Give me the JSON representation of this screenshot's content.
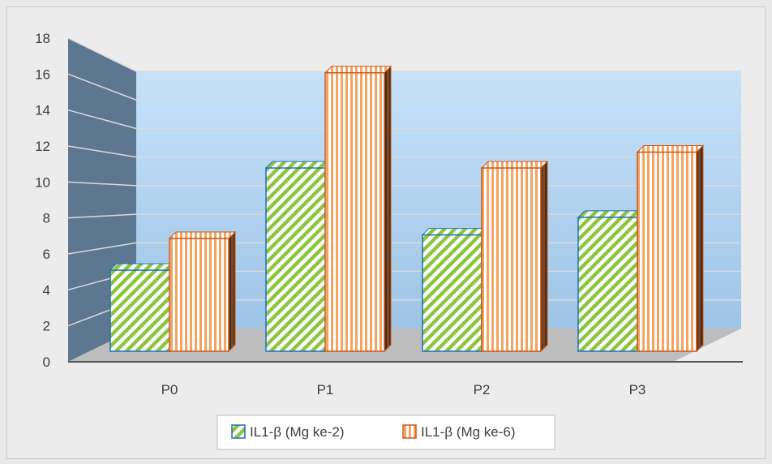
{
  "chart_data": {
    "type": "bar",
    "categories": [
      "P0",
      "P1",
      "P2",
      "P3"
    ],
    "series": [
      {
        "name": "IL1-β (Mg ke-2)",
        "values": [
          4.6,
          10.4,
          6.6,
          7.6
        ],
        "color": "#8cc63f",
        "pattern": "diagonal-stripes"
      },
      {
        "name": "IL1-β (Mg ke-6)",
        "values": [
          6.4,
          15.8,
          10.4,
          11.3
        ],
        "color": "#f4a460",
        "pattern": "vertical-stripes"
      }
    ],
    "ylim": [
      0,
      18
    ],
    "yticks": [
      "0",
      "2",
      "4",
      "6",
      "8",
      "10",
      "12",
      "14",
      "16",
      "18"
    ],
    "title": "",
    "xlabel": "",
    "ylabel": "",
    "grid": true,
    "legend": "bottom",
    "colors": {
      "back_wall": "#bfdcf5",
      "side_wall": "#5e7791",
      "floor": "#bdbdbd",
      "series1_edge": "#1f6fbf",
      "series2_edge": "#c65a1e"
    }
  }
}
